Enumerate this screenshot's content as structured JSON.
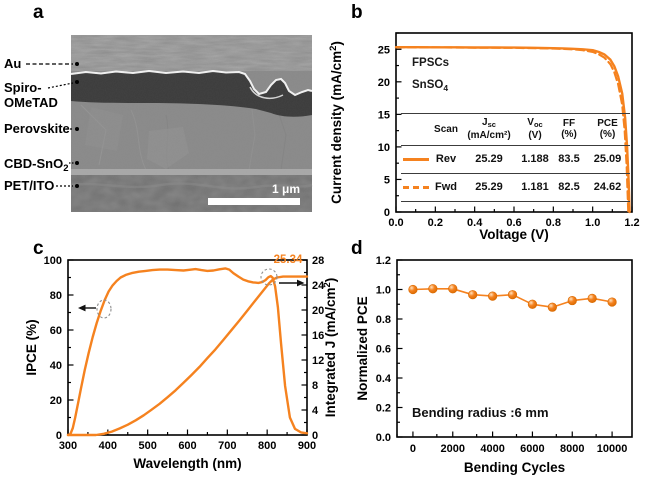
{
  "panels": {
    "a": "a",
    "b": "b",
    "c": "c",
    "d": "d"
  },
  "colors": {
    "accent": "#F5821F",
    "axis": "#000000",
    "table_line": "#3c3c3c"
  },
  "panel_a": {
    "annotations": [
      {
        "label": "Au"
      },
      {
        "label": "Spiro-",
        "label2": "OMeTAD"
      },
      {
        "label": "Perovskite"
      },
      {
        "label": "CBD-SnO",
        "sub": "2"
      },
      {
        "label": "PET/ITO"
      }
    ],
    "scale_bar": "1 μm"
  },
  "panel_b": {
    "table": {
      "col_scan": "Scan",
      "col_jsc_base": "J",
      "col_jsc_sub": "sc",
      "col_jsc_unit": "(mA/cm²)",
      "col_voc_base": "V",
      "col_voc_sub": "oc",
      "col_voc_unit": "(V)",
      "col_ff": "FF",
      "col_ff_unit": "(%)",
      "col_pce": "PCE",
      "col_pce_unit": "(%)",
      "rows": [
        {
          "scan": "Rev",
          "jsc": "25.29",
          "voc": "1.188",
          "ff": "83.5",
          "pce": "25.09",
          "line": "solid"
        },
        {
          "scan": "Fwd",
          "jsc": "25.29",
          "voc": "1.181",
          "ff": "82.5",
          "pce": "24.62",
          "line": "dashed"
        }
      ]
    }
  },
  "chart_data": [
    {
      "id": "jv-curve",
      "type": "line",
      "title": "",
      "xlabel": "Voltage (V)",
      "ylabel": "Current density (mA/cm2)",
      "xlabel_parts": [
        {
          "t": "Voltage (V)"
        }
      ],
      "ylabel_parts": [
        {
          "t": "Current density (mA/cm"
        },
        {
          "t": "2",
          "sup": 1
        },
        {
          "t": ")"
        }
      ],
      "xlim": [
        0,
        1.2
      ],
      "ylim": [
        0,
        27.5
      ],
      "xticks": [
        0,
        0.2,
        0.4,
        0.6,
        0.8,
        1.0,
        1.2
      ],
      "xtick_labels": [
        "0.0",
        "0.2",
        "0.4",
        "0.6",
        "0.8",
        "1.0",
        "1.2"
      ],
      "xminor": 0.1,
      "yticks": [
        0,
        5,
        10,
        15,
        20,
        25
      ],
      "ytick_labels": [
        "0",
        "5",
        "10",
        "15",
        "20",
        "25"
      ],
      "yminor": 2.5,
      "grid": false,
      "legend_position": "table-overlay",
      "annotations": [
        {
          "text": "FPSCs"
        },
        {
          "text_base": "SnSO",
          "text_sub": "4"
        }
      ],
      "series": [
        {
          "name": "Rev",
          "style": "solid",
          "color": "#F5821F",
          "width": 2.4,
          "x": [
            0,
            0.1,
            0.2,
            0.3,
            0.4,
            0.5,
            0.6,
            0.7,
            0.8,
            0.85,
            0.9,
            0.95,
            1.0,
            1.03,
            1.06,
            1.09,
            1.11,
            1.13,
            1.15,
            1.165,
            1.175,
            1.183,
            1.188
          ],
          "y": [
            25.32,
            25.32,
            25.31,
            25.3,
            25.28,
            25.27,
            25.25,
            25.22,
            25.17,
            25.13,
            25.08,
            25.0,
            24.85,
            24.6,
            24.2,
            23.4,
            22.4,
            20.8,
            18.2,
            14.5,
            10.0,
            4.5,
            0
          ]
        },
        {
          "name": "Fwd",
          "style": "dashed",
          "color": "#F5821F",
          "width": 2.2,
          "x": [
            0,
            0.2,
            0.4,
            0.6,
            0.8,
            0.9,
            0.95,
            1.0,
            1.03,
            1.06,
            1.09,
            1.11,
            1.13,
            1.15,
            1.163,
            1.173,
            1.181
          ],
          "y": [
            25.3,
            25.29,
            25.26,
            25.22,
            25.12,
            25.0,
            24.85,
            24.6,
            24.25,
            23.7,
            22.7,
            21.5,
            19.6,
            16.5,
            12.5,
            7.0,
            0
          ]
        }
      ]
    },
    {
      "id": "ipce-spectrum",
      "type": "line",
      "title": "",
      "xlabel": "Wavelength (nm)",
      "ylabel": "IPCE (%)",
      "y2label": "Integrated J (mA/cm2)",
      "xlabel_parts": [
        {
          "t": "Wavelength (nm)"
        }
      ],
      "ylabel_parts": [
        {
          "t": "IPCE (%)"
        }
      ],
      "y2label_parts": [
        {
          "t": "Integrated J (mA/cm"
        },
        {
          "t": "2",
          "sup": 1
        },
        {
          "t": ")"
        }
      ],
      "xlim": [
        300,
        900
      ],
      "ylim": [
        0,
        100
      ],
      "y2lim": [
        0,
        28
      ],
      "xticks": [
        300,
        400,
        500,
        600,
        700,
        800,
        900
      ],
      "xtick_labels": [
        "300",
        "400",
        "500",
        "600",
        "700",
        "800",
        "900"
      ],
      "xminor": 50,
      "yticks": [
        0,
        20,
        40,
        60,
        80,
        100
      ],
      "ytick_labels": [
        "0",
        "20",
        "40",
        "60",
        "80",
        "100"
      ],
      "yminor": 10,
      "y2ticks": [
        0,
        4,
        8,
        12,
        16,
        20,
        24,
        28
      ],
      "y2tick_labels": [
        "0",
        "4",
        "8",
        "12",
        "16",
        "20",
        "24",
        "28"
      ],
      "y2minor": 2,
      "grid": false,
      "annotations": [
        {
          "text": "25.34",
          "meaning": "integrated J plateau (mA/cm2)"
        }
      ],
      "series": [
        {
          "name": "IPCE",
          "axis": "left",
          "style": "solid",
          "color": "#F5821F",
          "width": 2.4,
          "x": [
            300,
            306,
            312,
            318,
            325,
            333,
            342,
            352,
            362,
            372,
            382,
            392,
            402,
            412,
            422,
            432,
            445,
            460,
            478,
            495,
            512,
            530,
            550,
            570,
            590,
            605,
            620,
            635,
            650,
            665,
            680,
            695,
            705,
            715,
            728,
            740,
            752,
            765,
            778,
            788,
            796,
            803,
            809,
            814,
            820,
            827,
            835,
            845,
            857,
            870,
            885,
            900
          ],
          "y": [
            0,
            0.5,
            4,
            10,
            18,
            27,
            37,
            47,
            56,
            64,
            71,
            77,
            82,
            85.5,
            88,
            90,
            91.5,
            92.5,
            93.3,
            93.8,
            94.2,
            94.5,
            94.5,
            94.2,
            94,
            94.4,
            94.8,
            94.2,
            93.8,
            94,
            94.7,
            95.2,
            94.5,
            92.5,
            90.5,
            88.8,
            87.8,
            87.2,
            86.9,
            87.4,
            88.6,
            90.2,
            90.8,
            89.8,
            85,
            73,
            52,
            28,
            10,
            3.5,
            1.5,
            1
          ]
        },
        {
          "name": "Integrated J",
          "axis": "right",
          "style": "solid",
          "color": "#F5821F",
          "width": 2.4,
          "x": [
            300,
            370,
            390,
            410,
            430,
            450,
            470,
            490,
            510,
            530,
            550,
            570,
            590,
            610,
            630,
            650,
            670,
            690,
            710,
            730,
            750,
            770,
            785,
            795,
            805,
            815,
            825,
            840,
            860,
            880,
            900
          ],
          "y": [
            0,
            0,
            0.2,
            0.55,
            1.05,
            1.65,
            2.35,
            3.15,
            4.05,
            5.0,
            6.05,
            7.15,
            8.35,
            9.6,
            10.9,
            12.3,
            13.7,
            15.2,
            16.75,
            18.3,
            19.9,
            21.5,
            22.7,
            23.5,
            24.3,
            24.9,
            25.2,
            25.34,
            25.34,
            25.34,
            25.34
          ]
        }
      ]
    },
    {
      "id": "bending-stability",
      "type": "line",
      "title": "",
      "xlabel": "Bending Cycles",
      "ylabel": "Normalized PCE",
      "xlabel_parts": [
        {
          "t": "Bending Cycles"
        }
      ],
      "ylabel_parts": [
        {
          "t": "Normalized PCE"
        }
      ],
      "xlim": [
        -800,
        11000
      ],
      "ylim": [
        0,
        1.2
      ],
      "xticks": [
        0,
        2000,
        4000,
        6000,
        8000,
        10000
      ],
      "xtick_labels": [
        "0",
        "2000",
        "4000",
        "6000",
        "8000",
        "10000"
      ],
      "xminor": 1000,
      "yticks": [
        0,
        0.2,
        0.4,
        0.6,
        0.8,
        1.0,
        1.2
      ],
      "ytick_labels": [
        "0.0",
        "0.2",
        "0.4",
        "0.6",
        "0.8",
        "1.0",
        "1.2"
      ],
      "yminor": 0.1,
      "grid": false,
      "annotations": [
        {
          "text": "Bending radius :6 mm"
        }
      ],
      "series": [
        {
          "name": "Normalized PCE",
          "style": "solid",
          "color": "#F5821F",
          "width": 1.6,
          "marker": "sphere",
          "x": [
            0,
            1000,
            2000,
            3000,
            4000,
            5000,
            6000,
            7000,
            8000,
            9000,
            10000
          ],
          "y": [
            1.0,
            1.005,
            1.005,
            0.965,
            0.955,
            0.965,
            0.9,
            0.88,
            0.925,
            0.94,
            0.915
          ]
        }
      ]
    }
  ]
}
